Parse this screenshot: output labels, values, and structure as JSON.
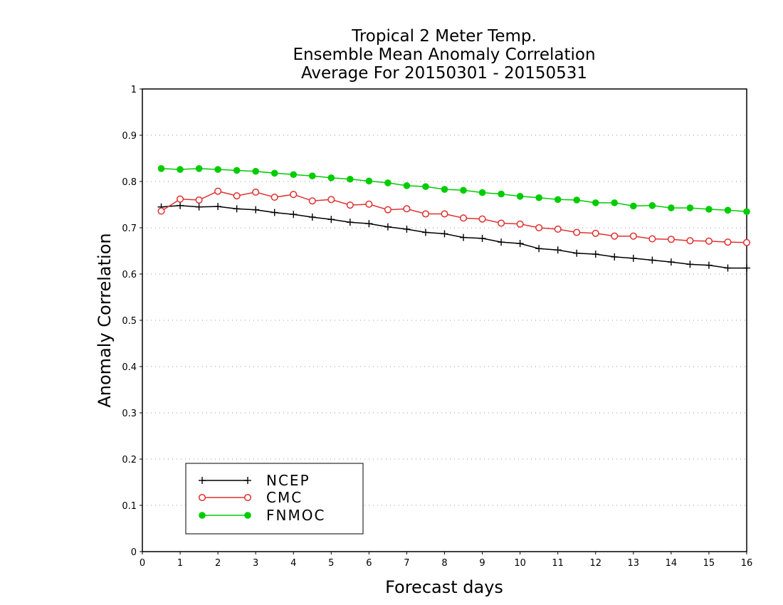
{
  "chart_data": {
    "type": "line",
    "title": [
      "Tropical 2 Meter Temp.",
      "Ensemble Mean Anomaly Correlation",
      "Average For 20150301 - 20150531"
    ],
    "xlabel": "Forecast days",
    "ylabel": "Anomaly Correlation",
    "xlim": [
      0,
      16
    ],
    "ylim": [
      0,
      1
    ],
    "xticks": [
      0,
      1,
      2,
      3,
      4,
      5,
      6,
      7,
      8,
      9,
      10,
      11,
      12,
      13,
      14,
      15,
      16
    ],
    "yticks": [
      "0",
      "0.1",
      "0.2",
      "0.3",
      "0.4",
      "0.5",
      "0.6",
      "0.7",
      "0.8",
      "0.9",
      "1"
    ],
    "grid": "horizontal dotted",
    "legend_position": "bottom-left",
    "x": [
      0.5,
      1,
      1.5,
      2,
      2.5,
      3,
      3.5,
      4,
      4.5,
      5,
      5.5,
      6,
      6.5,
      7,
      7.5,
      8,
      8.5,
      9,
      9.5,
      10,
      10.5,
      11,
      11.5,
      12,
      12.5,
      13,
      13.5,
      14,
      14.5,
      15,
      15.5,
      16
    ],
    "series": [
      {
        "name": "NCEP",
        "color": "#000000",
        "marker": "plus",
        "values": [
          0.745,
          0.748,
          0.745,
          0.746,
          0.741,
          0.739,
          0.733,
          0.729,
          0.723,
          0.718,
          0.712,
          0.709,
          0.702,
          0.697,
          0.69,
          0.687,
          0.679,
          0.677,
          0.669,
          0.666,
          0.655,
          0.652,
          0.645,
          0.643,
          0.637,
          0.634,
          0.63,
          0.626,
          0.621,
          0.619,
          0.613,
          0.613
        ]
      },
      {
        "name": "CMC",
        "color": "#e03030",
        "marker": "open-circle",
        "values": [
          0.736,
          0.762,
          0.76,
          0.779,
          0.769,
          0.777,
          0.766,
          0.772,
          0.758,
          0.761,
          0.749,
          0.751,
          0.739,
          0.741,
          0.73,
          0.73,
          0.721,
          0.719,
          0.71,
          0.708,
          0.7,
          0.697,
          0.69,
          0.688,
          0.682,
          0.682,
          0.676,
          0.675,
          0.672,
          0.671,
          0.669,
          0.668
        ]
      },
      {
        "name": "FNMOC",
        "color": "#00cc00",
        "marker": "filled-circle",
        "values": [
          0.828,
          0.826,
          0.828,
          0.826,
          0.824,
          0.822,
          0.818,
          0.815,
          0.812,
          0.808,
          0.805,
          0.801,
          0.797,
          0.791,
          0.789,
          0.783,
          0.781,
          0.776,
          0.773,
          0.768,
          0.765,
          0.761,
          0.76,
          0.754,
          0.754,
          0.747,
          0.748,
          0.743,
          0.743,
          0.74,
          0.738,
          0.735
        ]
      }
    ]
  }
}
